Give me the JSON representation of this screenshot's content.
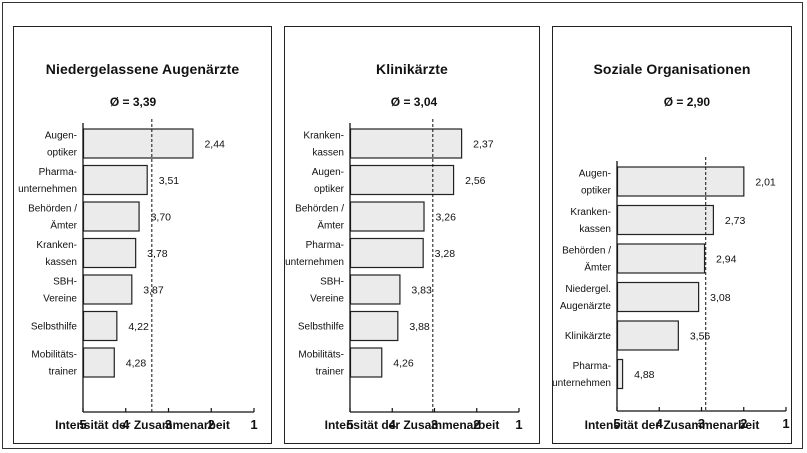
{
  "chart_data": [
    {
      "type": "bar",
      "title": "Niedergelassene Augenärzte",
      "average_label": "Ø = 3,39",
      "average": 3.39,
      "xlabel": "Intensität der Zusammenarbeit",
      "xlim": [
        5,
        1
      ],
      "xticks": [
        "5",
        "4",
        "3",
        "2",
        "1"
      ],
      "categories": [
        [
          "Augen-",
          "optiker"
        ],
        [
          "Pharma-",
          "unternehmen"
        ],
        [
          "Behörden /",
          "Ämter"
        ],
        [
          "Kranken-",
          "kassen"
        ],
        [
          "SBH-",
          "Vereine"
        ],
        [
          "Selbsthilfe"
        ],
        [
          "Mobilitäts-",
          "trainer"
        ]
      ],
      "values": [
        2.44,
        3.51,
        3.7,
        3.78,
        3.87,
        4.22,
        4.28
      ],
      "value_labels": [
        "2,44",
        "3,51",
        "3,70",
        "3,78",
        "3,87",
        "4,22",
        "4,28"
      ]
    },
    {
      "type": "bar",
      "title": "Klinikärzte",
      "average_label": "Ø = 3,04",
      "average": 3.04,
      "xlabel": "Intensität der Zusammenarbeit",
      "xlim": [
        5,
        1
      ],
      "xticks": [
        "5",
        "4",
        "3",
        "2",
        "1"
      ],
      "categories": [
        [
          "Kranken-",
          "kassen"
        ],
        [
          "Augen-",
          "optiker"
        ],
        [
          "Behörden /",
          "Ämter"
        ],
        [
          "Pharma-",
          "unternehmen"
        ],
        [
          "SBH-",
          "Vereine"
        ],
        [
          "Selbsthilfe"
        ],
        [
          "Mobilitäts-",
          "trainer"
        ]
      ],
      "values": [
        2.37,
        2.56,
        3.26,
        3.28,
        3.83,
        3.88,
        4.26
      ],
      "value_labels": [
        "2,37",
        "2,56",
        "3,26",
        "3,28",
        "3,83",
        "3,88",
        "4,26"
      ]
    },
    {
      "type": "bar",
      "title": "Soziale Organisationen",
      "average_label": "Ø = 2,90",
      "average": 2.9,
      "xlabel": "Intensität der Zusammenarbeit",
      "xlim": [
        5,
        1
      ],
      "xticks": [
        "5",
        "4",
        "3",
        "2",
        "1"
      ],
      "categories": [
        [
          "Augen-",
          "optiker"
        ],
        [
          "Kranken-",
          "kassen"
        ],
        [
          "Behörden /",
          "Ämter"
        ],
        [
          "Niedergel.",
          "Augenärzte"
        ],
        [
          "Klinikärzte"
        ],
        [
          "Pharma-",
          "unternehmen"
        ]
      ],
      "values": [
        2.01,
        2.73,
        2.94,
        3.08,
        3.56,
        4.88
      ],
      "value_labels": [
        "2,01",
        "2,73",
        "2,94",
        "3,08",
        "3,56",
        "4,88"
      ]
    }
  ],
  "colors": {
    "bar_fill": "#ebebeb",
    "bar_stroke": "#222222",
    "axis": "#111111"
  }
}
